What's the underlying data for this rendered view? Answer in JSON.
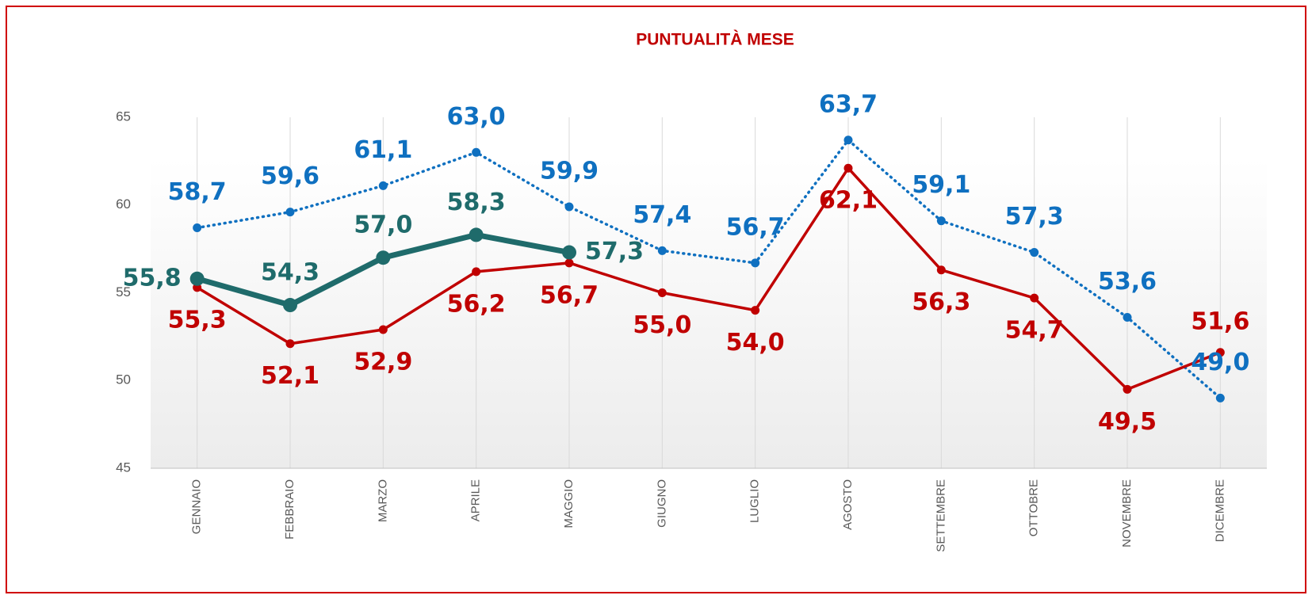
{
  "chart_data": {
    "type": "line",
    "title": "PUNTUALITÀ MESE",
    "categories": [
      "GENNAIO",
      "FEBBRAIO",
      "MARZO",
      "APRILE",
      "MAGGIO",
      "GIUGNO",
      "LUGLIO",
      "AGOSTO",
      "SETTEMBRE",
      "OTTOBRE",
      "NOVEMBRE",
      "DICEMBRE"
    ],
    "series": [
      {
        "color": "#0f70c0",
        "style": "dotted",
        "values": [
          58.7,
          59.6,
          61.1,
          63.0,
          59.9,
          57.4,
          56.7,
          63.7,
          59.1,
          57.3,
          53.6,
          49.0
        ],
        "value_labels": [
          "58,7",
          "59,6",
          "61,1",
          "63,0",
          "59,9",
          "57,4",
          "56,7",
          "63,7",
          "59,1",
          "57,3",
          "53,6",
          "49,0"
        ]
      },
      {
        "color": "#c00000",
        "style": "solid",
        "values": [
          55.3,
          52.1,
          52.9,
          56.2,
          56.7,
          55.0,
          54.0,
          62.1,
          56.3,
          54.7,
          49.5,
          51.6
        ],
        "value_labels": [
          "55,3",
          "52,1",
          "52,9",
          "56,2",
          "56,7",
          "55,0",
          "54,0",
          "62,1",
          "56,3",
          "54,7",
          "49,5",
          "51,6"
        ]
      },
      {
        "color": "#1f6b6b",
        "style": "thick",
        "values": [
          55.8,
          54.3,
          57.0,
          58.3,
          57.3,
          null,
          null,
          null,
          null,
          null,
          null,
          null
        ],
        "value_labels": [
          "55,8",
          "54,3",
          "57,0",
          "58,3",
          "57,3",
          null,
          null,
          null,
          null,
          null,
          null,
          null
        ]
      }
    ],
    "ylim": [
      45,
      65
    ],
    "yticks": [
      45,
      50,
      55,
      60,
      65
    ],
    "grid": false
  }
}
